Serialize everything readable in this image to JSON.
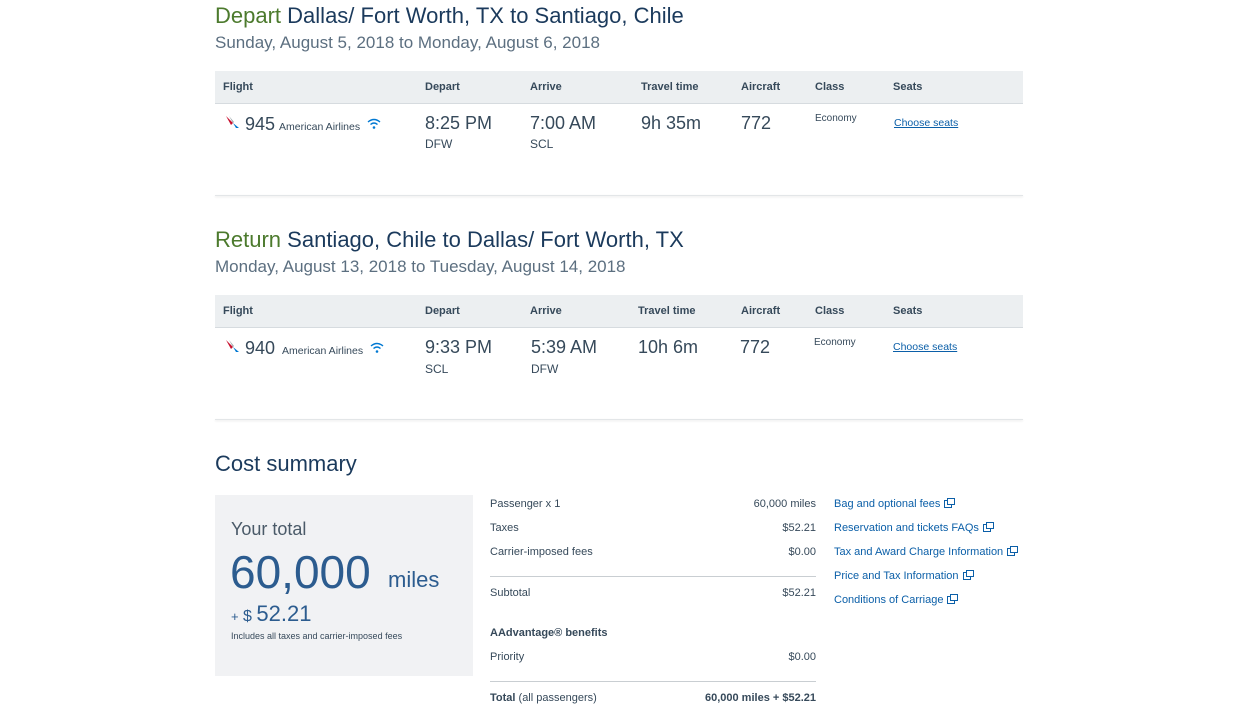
{
  "trips": [
    {
      "label": "Depart",
      "route": "Dallas/ Fort Worth, TX to Santiago, Chile",
      "dates": "Sunday, August 5, 2018 to Monday, August 6, 2018",
      "headers": [
        "Flight",
        "Depart",
        "Arrive",
        "Travel time",
        "Aircraft",
        "Class",
        "Seats"
      ],
      "flight": {
        "number": "945",
        "airline": "American Airlines",
        "depart_time": "8:25 PM",
        "depart_airport": "DFW",
        "arrive_time": "7:00 AM",
        "arrive_airport": "SCL",
        "travel_time": "9h 35m",
        "aircraft": "772",
        "class": "Economy",
        "seats": "Choose seats"
      }
    },
    {
      "label": "Return",
      "route": "Santiago, Chile to Dallas/ Fort Worth, TX",
      "dates": "Monday, August 13, 2018 to Tuesday, August 14, 2018",
      "headers": [
        "Flight",
        "Depart",
        "Arrive",
        "Travel time",
        "Aircraft",
        "Class",
        "Seats"
      ],
      "flight": {
        "number": "940",
        "airline": "American Airlines",
        "depart_time": "9:33 PM",
        "depart_airport": "SCL",
        "arrive_time": "5:39 AM",
        "arrive_airport": "DFW",
        "travel_time": "10h 6m",
        "aircraft": "772",
        "class": "Economy",
        "seats": "Choose seats"
      }
    }
  ],
  "cost_summary": {
    "title": "Cost summary",
    "total_label": "Your total",
    "miles": "60,000",
    "miles_unit": "miles",
    "plus": "+",
    "currency": "$",
    "cash": "52.21",
    "note": "Includes all taxes and carrier-imposed fees",
    "rows": [
      {
        "label": "Passenger x 1",
        "value": "60,000 miles"
      },
      {
        "label": "Taxes",
        "value": "$52.21"
      },
      {
        "label": "Carrier-imposed fees",
        "value": "$0.00"
      },
      {
        "label": "Subtotal",
        "value": "$52.21"
      }
    ],
    "benefits_title": "AAdvantage® benefits",
    "benefits": [
      {
        "label": "Priority",
        "value": "$0.00"
      }
    ],
    "total": {
      "label": "Total",
      "qualifier": "(all passengers)",
      "value": "60,000 miles + $52.21"
    },
    "links": [
      "Bag and optional fees",
      "Reservation and tickets FAQs",
      "Tax and Award Charge Information",
      "Price and Tax Information",
      "Conditions of Carriage"
    ]
  }
}
